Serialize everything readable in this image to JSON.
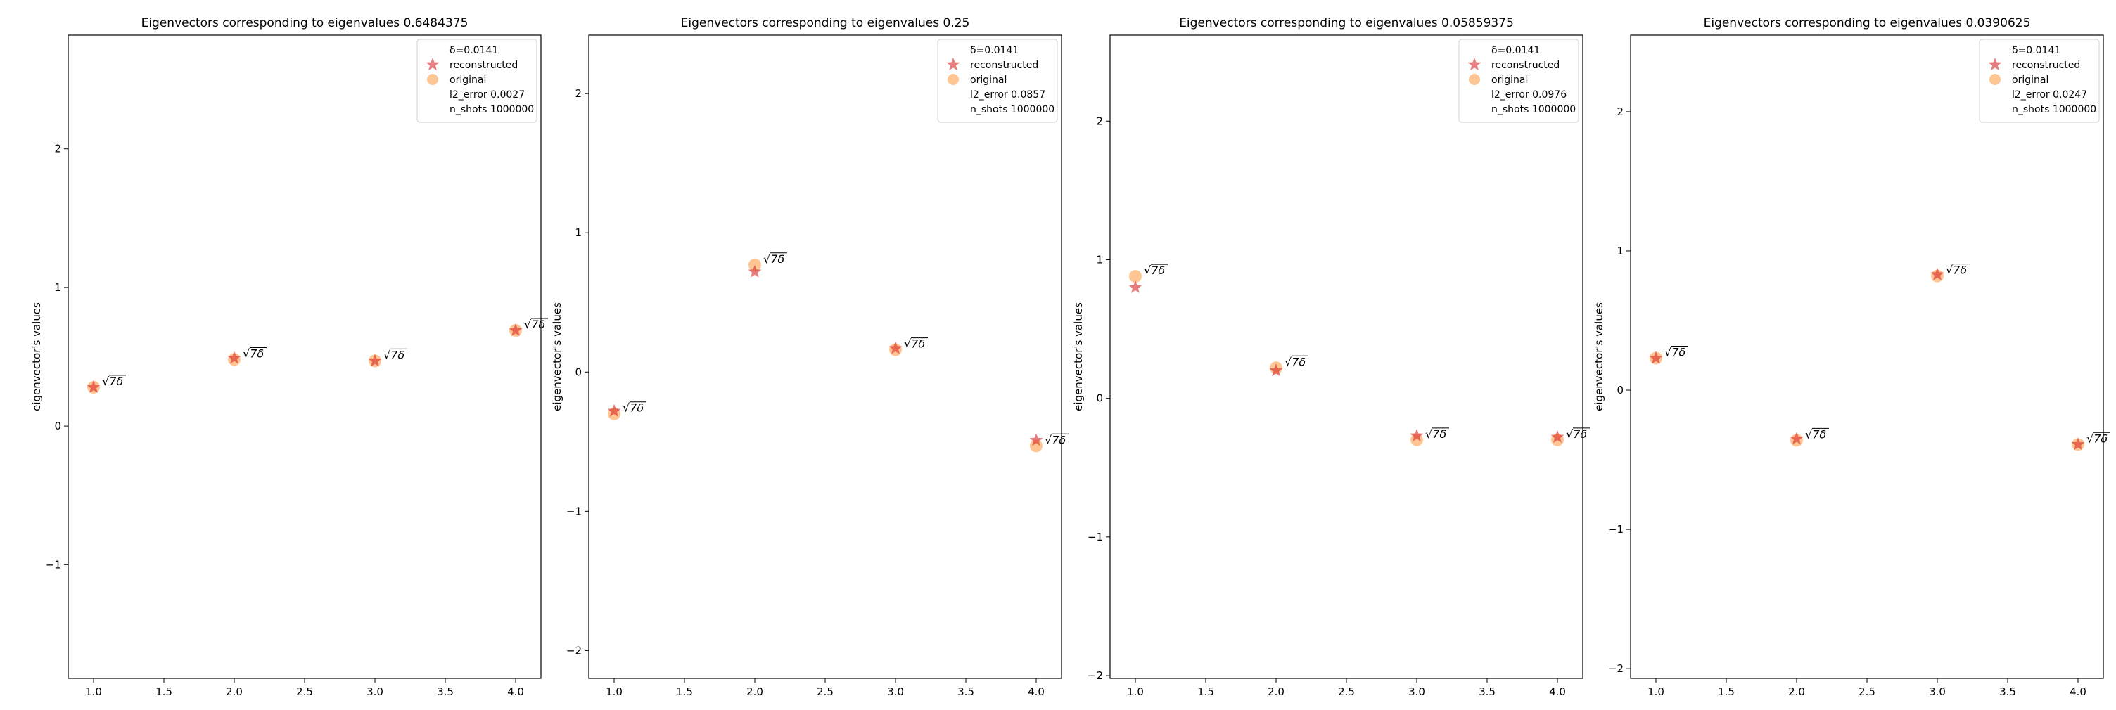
{
  "chart_data": [
    {
      "type": "scatter",
      "title": "Eigenvectors corresponding to eigenvalues 0.6484375",
      "ylabel": "eigenvector's values",
      "xlim": [
        0.82,
        4.18
      ],
      "ylim": [
        -1.82,
        2.82
      ],
      "xticks": [
        1.0,
        1.5,
        2.0,
        2.5,
        3.0,
        3.5,
        4.0
      ],
      "xtick_labels": [
        "1.0",
        "1.5",
        "2.0",
        "2.5",
        "3.0",
        "3.5",
        "4.0"
      ],
      "yticks": [
        -1,
        0,
        1,
        2
      ],
      "ytick_labels": [
        "−1",
        "0",
        "1",
        "2"
      ],
      "series": [
        {
          "name": "reconstructed",
          "x": [
            1,
            2,
            3,
            4
          ],
          "y": [
            0.28,
            0.49,
            0.47,
            0.69
          ],
          "color": "#d62728",
          "marker": "star"
        },
        {
          "name": "original",
          "x": [
            1,
            2,
            3,
            4
          ],
          "y": [
            0.28,
            0.48,
            0.47,
            0.69
          ],
          "color": "#ff7f0e",
          "marker": "circle"
        }
      ],
      "annotations": [
        "√7δ",
        "√7δ",
        "√7δ",
        "√7δ"
      ],
      "legend_position": "upper right",
      "legend_extra": [
        "δ=0.0141",
        "l2_error 0.0027",
        "n_shots 1000000"
      ]
    },
    {
      "type": "scatter",
      "title": "Eigenvectors corresponding to eigenvalues 0.25",
      "ylabel": "eigenvector's values",
      "xlim": [
        0.82,
        4.18
      ],
      "ylim": [
        -2.2,
        2.42
      ],
      "xticks": [
        1.0,
        1.5,
        2.0,
        2.5,
        3.0,
        3.5,
        4.0
      ],
      "xtick_labels": [
        "1.0",
        "1.5",
        "2.0",
        "2.5",
        "3.0",
        "3.5",
        "4.0"
      ],
      "yticks": [
        -2,
        -1,
        0,
        1,
        2
      ],
      "ytick_labels": [
        "−2",
        "−1",
        "0",
        "1",
        "2"
      ],
      "series": [
        {
          "name": "reconstructed",
          "x": [
            1,
            2,
            3,
            4
          ],
          "y": [
            -0.28,
            0.72,
            0.17,
            -0.49
          ],
          "color": "#d62728",
          "marker": "star"
        },
        {
          "name": "original",
          "x": [
            1,
            2,
            3,
            4
          ],
          "y": [
            -0.3,
            0.77,
            0.16,
            -0.53
          ],
          "color": "#ff7f0e",
          "marker": "circle"
        }
      ],
      "annotations": [
        "√7δ",
        "√7δ",
        "√7δ",
        "√7δ"
      ],
      "legend_position": "upper right",
      "legend_extra": [
        "δ=0.0141",
        "l2_error 0.0857",
        "n_shots 1000000"
      ]
    },
    {
      "type": "scatter",
      "title": "Eigenvectors corresponding to eigenvalues 0.05859375",
      "ylabel": "eigenvector's values",
      "xlim": [
        0.82,
        4.18
      ],
      "ylim": [
        -2.02,
        2.62
      ],
      "xticks": [
        1.0,
        1.5,
        2.0,
        2.5,
        3.0,
        3.5,
        4.0
      ],
      "xtick_labels": [
        "1.0",
        "1.5",
        "2.0",
        "2.5",
        "3.0",
        "3.5",
        "4.0"
      ],
      "yticks": [
        -2,
        -1,
        0,
        1,
        2
      ],
      "ytick_labels": [
        "−2",
        "−1",
        "0",
        "1",
        "2"
      ],
      "series": [
        {
          "name": "reconstructed",
          "x": [
            1,
            2,
            3,
            4
          ],
          "y": [
            0.8,
            0.2,
            -0.27,
            -0.28
          ],
          "color": "#d62728",
          "marker": "star"
        },
        {
          "name": "original",
          "x": [
            1,
            2,
            3,
            4
          ],
          "y": [
            0.88,
            0.22,
            -0.3,
            -0.3
          ],
          "color": "#ff7f0e",
          "marker": "circle"
        }
      ],
      "annotations": [
        "√7δ",
        "√7δ",
        "√7δ",
        "√7δ"
      ],
      "legend_position": "upper right",
      "legend_extra": [
        "δ=0.0141",
        "l2_error 0.0976",
        "n_shots 1000000"
      ]
    },
    {
      "type": "scatter",
      "title": "Eigenvectors corresponding to eigenvalues 0.0390625",
      "ylabel": "eigenvector's values",
      "xlim": [
        0.82,
        4.18
      ],
      "ylim": [
        -2.07,
        2.55
      ],
      "xticks": [
        1.0,
        1.5,
        2.0,
        2.5,
        3.0,
        3.5,
        4.0
      ],
      "xtick_labels": [
        "1.0",
        "1.5",
        "2.0",
        "2.5",
        "3.0",
        "3.5",
        "4.0"
      ],
      "yticks": [
        -2,
        -1,
        0,
        1,
        2
      ],
      "ytick_labels": [
        "−2",
        "−1",
        "0",
        "1",
        "2"
      ],
      "series": [
        {
          "name": "reconstructed",
          "x": [
            1,
            2,
            3,
            4
          ],
          "y": [
            0.23,
            -0.35,
            0.83,
            -0.39
          ],
          "color": "#d62728",
          "marker": "star"
        },
        {
          "name": "original",
          "x": [
            1,
            2,
            3,
            4
          ],
          "y": [
            0.23,
            -0.36,
            0.82,
            -0.39
          ],
          "color": "#ff7f0e",
          "marker": "circle"
        }
      ],
      "annotations": [
        "√7δ",
        "√7δ",
        "√7δ",
        "√7δ"
      ],
      "legend_position": "upper right",
      "legend_extra": [
        "δ=0.0141",
        "l2_error 0.0247",
        "n_shots 1000000"
      ]
    }
  ]
}
